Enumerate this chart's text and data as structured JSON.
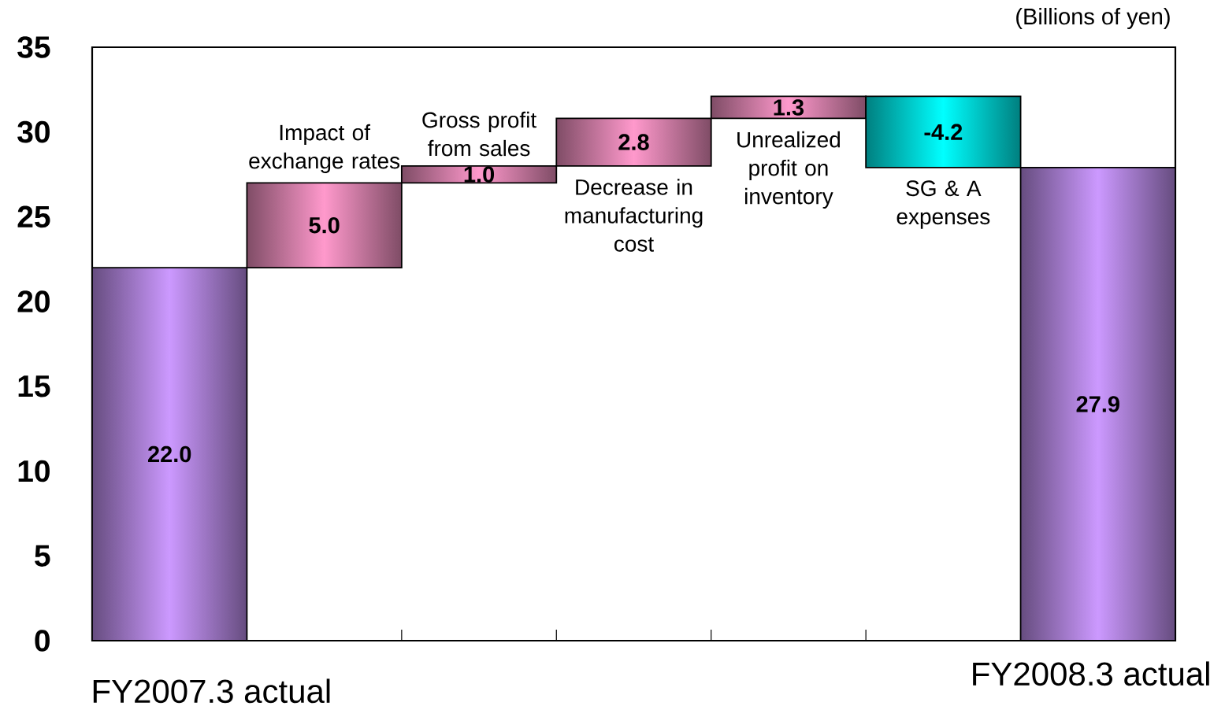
{
  "chart_data": {
    "type": "bar",
    "ylabel": "(Billions of yen)",
    "categories": [
      "FY2007.3 actual",
      "Impact of exchange rates",
      "Gross profit from sales",
      "Decrease in manufacturing cost",
      "Unrealized profit on inventory",
      "SG & A expenses",
      "FY2008.3 actual"
    ],
    "values": [
      22.0,
      5.0,
      1.0,
      2.8,
      1.3,
      -4.2,
      27.9
    ],
    "base": [
      0,
      22.0,
      27.0,
      28.0,
      30.8,
      32.1,
      0
    ],
    "colors": [
      "#cc99ff",
      "#ff99cc",
      "#ff99cc",
      "#ff99cc",
      "#ff99cc",
      "#00ffff",
      "#cc99ff"
    ],
    "value_labels": [
      "22.0",
      "5.0",
      "1.0",
      "2.8",
      "1.3",
      "-4.2",
      "27.9"
    ],
    "ylim": [
      0,
      35
    ],
    "yticks": [
      0,
      5,
      10,
      15,
      20,
      25,
      30,
      35
    ]
  }
}
